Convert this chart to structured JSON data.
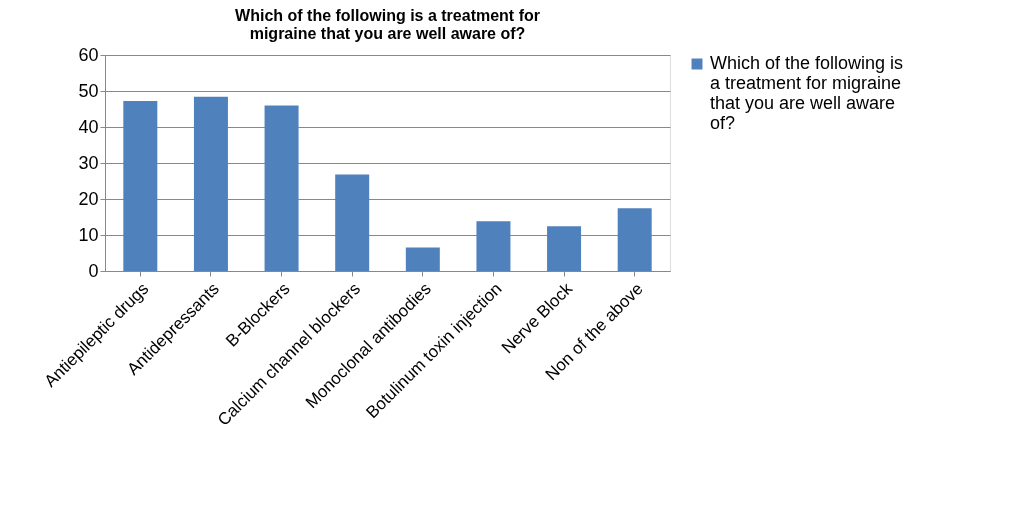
{
  "chart_data": {
    "type": "bar",
    "title": "Which of the following is a treatment for migraine that you are well aware of?",
    "categories": [
      "Antiepileptic drugs",
      "Antidepressants",
      "B-Blockers",
      "Calcium channel blockers",
      "Monoclonal antibodies",
      "Botulinum toxin injection",
      "Nerve Block",
      "Non of the above"
    ],
    "series": [
      {
        "name": "Which of the following is a treatment for migraine that you are well aware of?",
        "color": "#4f81bd",
        "values": [
          47.2,
          48.4,
          46.0,
          26.8,
          6.5,
          13.8,
          12.4,
          17.4
        ]
      }
    ],
    "ylim": [
      0,
      60
    ],
    "yticks": [
      0,
      10,
      20,
      30,
      40,
      50,
      60
    ],
    "grid": "y",
    "legend": "right"
  }
}
